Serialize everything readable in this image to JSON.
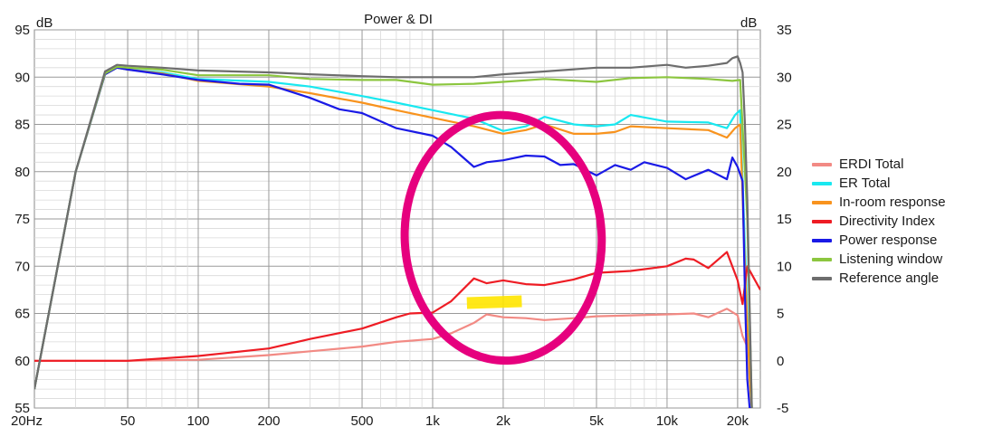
{
  "chart_data": {
    "type": "line",
    "title": "Power & DI",
    "y_left_unit": "dB",
    "y_right_unit": "dB",
    "x_scale": "log",
    "xlim": [
      20,
      25000
    ],
    "ylim_left": [
      55,
      95
    ],
    "ylim_right": [
      -5,
      35
    ],
    "x_ticks": [
      {
        "value": 20,
        "label": "20Hz"
      },
      {
        "value": 50,
        "label": "50"
      },
      {
        "value": 100,
        "label": "100"
      },
      {
        "value": 200,
        "label": "200"
      },
      {
        "value": 500,
        "label": "500"
      },
      {
        "value": 1000,
        "label": "1k"
      },
      {
        "value": 2000,
        "label": "2k"
      },
      {
        "value": 5000,
        "label": "5k"
      },
      {
        "value": 10000,
        "label": "10k"
      },
      {
        "value": 20000,
        "label": "20k"
      }
    ],
    "y_left_ticks": [
      55,
      60,
      65,
      70,
      75,
      80,
      85,
      90,
      95
    ],
    "y_right_ticks": [
      -5,
      0,
      5,
      10,
      15,
      20,
      25,
      30,
      35
    ],
    "grid": true,
    "legend_position": "right",
    "series": [
      {
        "name": "ERDI Total",
        "color": "#f28a84",
        "axis": "right",
        "x": [
          20,
          50,
          100,
          200,
          300,
          500,
          700,
          1000,
          1200,
          1500,
          1700,
          2000,
          2500,
          3000,
          4000,
          5000,
          7000,
          10000,
          13000,
          15000,
          18000,
          20000,
          21000,
          22000
        ],
        "y": [
          0,
          0,
          0.1,
          0.6,
          1.0,
          1.5,
          2.0,
          2.3,
          2.9,
          4.0,
          4.9,
          4.6,
          4.5,
          4.3,
          4.5,
          4.7,
          4.8,
          4.9,
          5.0,
          4.6,
          5.5,
          4.8,
          2.6,
          1.5
        ]
      },
      {
        "name": "ER Total",
        "color": "#19e8f0",
        "axis": "left",
        "x": [
          20,
          30,
          40,
          45,
          50,
          70,
          100,
          200,
          300,
          500,
          700,
          1000,
          1500,
          2000,
          2500,
          3000,
          4000,
          5000,
          6000,
          7000,
          10000,
          15000,
          18000,
          19500,
          20500,
          21500,
          22500,
          23000
        ],
        "y": [
          57,
          80,
          90.3,
          91.0,
          90.8,
          90.5,
          89.8,
          89.5,
          89.0,
          88.0,
          87.3,
          86.5,
          85.6,
          84.3,
          84.8,
          85.8,
          85.0,
          84.8,
          85.0,
          86.0,
          85.3,
          85.2,
          84.6,
          86.0,
          86.5,
          72,
          58,
          55
        ]
      },
      {
        "name": "In-room response",
        "color": "#f8931e",
        "axis": "left",
        "x": [
          20,
          30,
          40,
          45,
          50,
          70,
          100,
          200,
          300,
          500,
          700,
          1000,
          1500,
          2000,
          2500,
          3000,
          4000,
          5000,
          6000,
          7000,
          10000,
          15000,
          18000,
          19500,
          20500,
          21500,
          22500,
          23000
        ],
        "y": [
          57,
          80,
          90.3,
          91.0,
          90.8,
          90.4,
          89.6,
          89.0,
          88.3,
          87.3,
          86.5,
          85.7,
          84.8,
          84.0,
          84.4,
          85.0,
          84.0,
          84.0,
          84.2,
          84.8,
          84.6,
          84.4,
          83.6,
          84.6,
          85.0,
          70,
          58,
          55
        ]
      },
      {
        "name": "Directivity Index",
        "color": "#ee1c24",
        "axis": "right",
        "x": [
          20,
          50,
          100,
          200,
          300,
          500,
          700,
          800,
          1000,
          1200,
          1500,
          1700,
          2000,
          2500,
          3000,
          4000,
          5000,
          7000,
          10000,
          12000,
          13000,
          15000,
          18000,
          20000,
          21000,
          22000,
          25000
        ],
        "y": [
          0,
          0,
          0.5,
          1.3,
          2.3,
          3.4,
          4.6,
          5.0,
          5.1,
          6.3,
          8.7,
          8.2,
          8.5,
          8.1,
          8.0,
          8.6,
          9.3,
          9.5,
          10.0,
          10.8,
          10.7,
          9.8,
          11.5,
          8.5,
          6.0,
          10.0,
          7.5
        ]
      },
      {
        "name": "Power response",
        "color": "#1a1ae6",
        "axis": "left",
        "x": [
          20,
          30,
          40,
          45,
          50,
          70,
          100,
          150,
          200,
          300,
          400,
          500,
          700,
          1000,
          1200,
          1500,
          1700,
          2000,
          2500,
          3000,
          3500,
          4000,
          5000,
          6000,
          7000,
          8000,
          10000,
          12000,
          15000,
          18000,
          19000,
          20000,
          21000,
          21500,
          22000,
          22500,
          23000
        ],
        "y": [
          57,
          80,
          90.3,
          91.0,
          90.8,
          90.3,
          89.7,
          89.3,
          89.2,
          87.8,
          86.6,
          86.2,
          84.6,
          83.8,
          82.6,
          80.5,
          81.0,
          81.2,
          81.7,
          81.6,
          80.7,
          80.8,
          79.6,
          80.7,
          80.2,
          81.0,
          80.4,
          79.2,
          80.2,
          79.2,
          81.5,
          80.5,
          79,
          67,
          58,
          55,
          55
        ]
      },
      {
        "name": "Listening window",
        "color": "#8cc63f",
        "axis": "left",
        "x": [
          20,
          30,
          40,
          45,
          50,
          70,
          100,
          200,
          300,
          500,
          700,
          1000,
          1500,
          2000,
          3000,
          5000,
          7000,
          10000,
          15000,
          19000,
          20500,
          21500,
          22000,
          23000
        ],
        "y": [
          57,
          80,
          90.4,
          91.1,
          91.0,
          90.8,
          90.2,
          90.2,
          89.8,
          89.7,
          89.7,
          89.2,
          89.3,
          89.5,
          89.8,
          89.5,
          89.9,
          90.0,
          89.8,
          89.6,
          89.7,
          80,
          75,
          55
        ]
      },
      {
        "name": "Reference angle",
        "color": "#6d6d6d",
        "axis": "left",
        "x": [
          20,
          30,
          40,
          45,
          50,
          70,
          100,
          200,
          300,
          500,
          700,
          1000,
          1500,
          2000,
          3000,
          5000,
          7000,
          10000,
          12000,
          15000,
          18000,
          19000,
          20000,
          20500,
          21000,
          21500,
          22000,
          23000
        ],
        "y": [
          57,
          80,
          90.6,
          91.3,
          91.2,
          91.0,
          90.7,
          90.5,
          90.3,
          90.1,
          90.0,
          90.0,
          90.0,
          90.3,
          90.6,
          91.0,
          91.0,
          91.3,
          91.0,
          91.2,
          91.5,
          92.0,
          92.2,
          91.5,
          90.5,
          85,
          77,
          55
        ]
      }
    ],
    "annotations": [
      {
        "shape": "ellipse-freehand",
        "color": "#e6007e",
        "center": [
          2000,
          73
        ],
        "rx_decades": 0.42,
        "ry_db": 13
      },
      {
        "shape": "highlight-bar",
        "color": "#ffe600",
        "x_range": [
          1400,
          2400
        ],
        "y": 66.2
      }
    ]
  }
}
